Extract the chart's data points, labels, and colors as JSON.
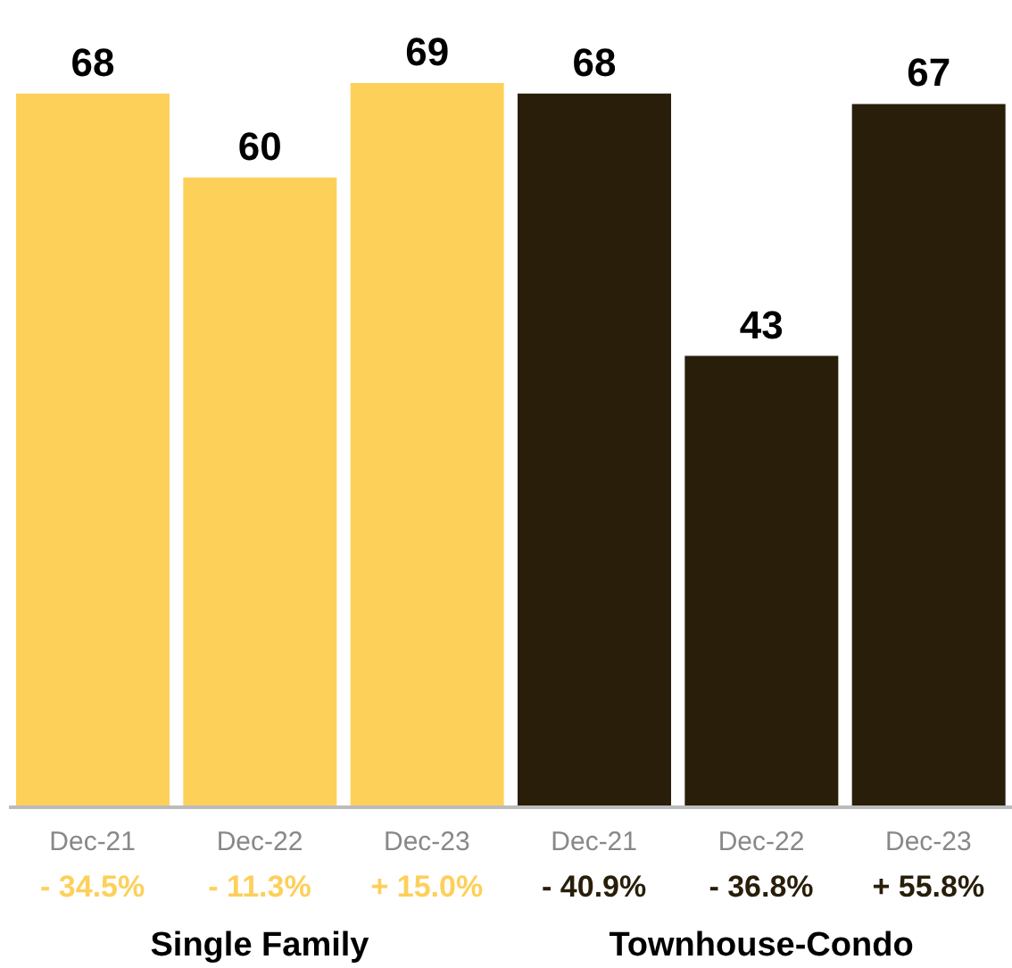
{
  "chart_data": {
    "type": "bar",
    "categories": [
      "Dec-21",
      "Dec-22",
      "Dec-23",
      "Dec-21",
      "Dec-22",
      "Dec-23"
    ],
    "stacked": true,
    "data_labels": true,
    "series": [
      {
        "color": "#fdd05a",
        "values": [
          68,
          60,
          69,
          null,
          null,
          null
        ]
      },
      {
        "color": "#281e0a",
        "values": [
          null,
          null,
          null,
          68,
          43,
          67
        ]
      }
    ],
    "annotations": [
      "- 34.5%",
      "- 11.3%",
      "+ 15.0%",
      "- 40.9%",
      "- 36.8%",
      "+ 55.8%",
      "Single Family",
      "Townhouse-Condo"
    ]
  }
}
